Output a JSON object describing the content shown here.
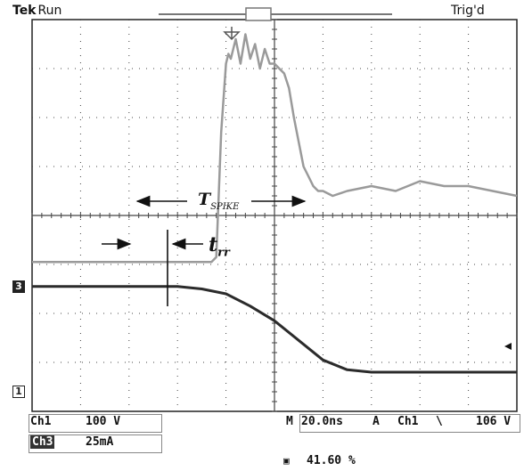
{
  "status": {
    "brand": "Tek",
    "mode": "Run",
    "trigger_state": "Trig'd"
  },
  "channels": {
    "ch1": {
      "label": "Ch1",
      "scale": "100 V",
      "marker": "1"
    },
    "ch3": {
      "label": "Ch3",
      "scale": "25mA",
      "marker": "3"
    }
  },
  "timebase": {
    "prefix": "M",
    "value": "20.0ns"
  },
  "trigger": {
    "mode": "A",
    "source": "Ch1",
    "slope": "\\",
    "level": "106 V"
  },
  "trigger_position": "41.60 %",
  "annotations": {
    "t_spike": "T",
    "t_spike_sub": "SPIKE",
    "t_rr": "t",
    "t_rr_sub": "rr"
  },
  "colors": {
    "ch1_trace": "#2b2b2b",
    "ch3_trace": "#9a9a9a",
    "grid": "#444444"
  },
  "chart_data": {
    "type": "line",
    "xlabel": "",
    "ylabel": "",
    "x_divisions": 10,
    "y_divisions": 8,
    "xlim": [
      -5,
      5
    ],
    "ylim": [
      -4,
      4
    ],
    "grid": true,
    "series": [
      {
        "x": [
          -5,
          -1.3,
          -1.2,
          -1.1,
          -1.0,
          -0.95,
          -0.9,
          -0.8,
          -0.7,
          -0.6,
          -0.5,
          -0.4,
          -0.3,
          -0.2,
          -0.1,
          0,
          0.1,
          0.2,
          0.3,
          0.4,
          0.5,
          0.6,
          0.7,
          0.8,
          0.9,
          1.0,
          1.2,
          1.5,
          2.0,
          2.5,
          3.0,
          3.5,
          4.0,
          4.5,
          5.0
        ],
        "y": [
          -0.95,
          -0.95,
          -0.85,
          1.7,
          3.1,
          3.3,
          3.2,
          3.6,
          3.1,
          3.7,
          3.2,
          3.5,
          3.0,
          3.4,
          3.1,
          3.1,
          3.0,
          2.9,
          2.6,
          2.0,
          1.5,
          1.0,
          0.8,
          0.6,
          0.5,
          0.5,
          0.4,
          0.5,
          0.6,
          0.5,
          0.7,
          0.6,
          0.6,
          0.5,
          0.4
        ]
      },
      {
        "x": [
          -5,
          -2.0,
          -1.5,
          -1.0,
          -0.5,
          0,
          0.5,
          1.0,
          1.5,
          2.0,
          3.0,
          4.0,
          5.0
        ],
        "y": [
          -1.45,
          -1.45,
          -1.5,
          -1.6,
          -1.85,
          -2.15,
          -2.55,
          -2.95,
          -3.15,
          -3.2,
          -3.2,
          -3.2,
          -3.2
        ]
      }
    ]
  }
}
